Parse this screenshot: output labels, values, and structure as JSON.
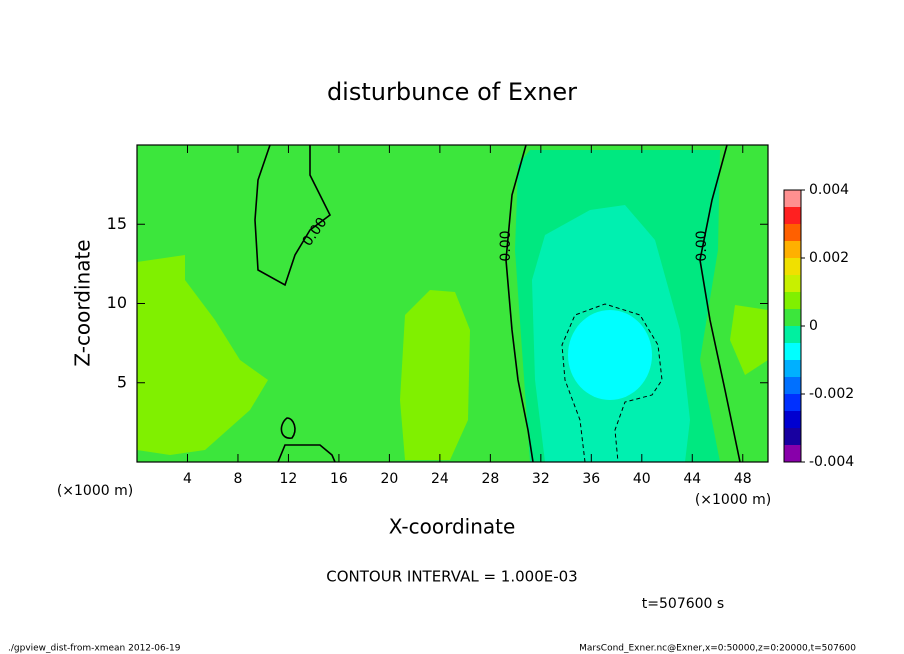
{
  "chart_data": {
    "type": "contour",
    "title": "disturbunce of Exner",
    "x_label": "X-coordinate",
    "y_label": "Z-coordinate",
    "x_unit_label": "(×1000 m)",
    "xlim": [
      0,
      50
    ],
    "xticks": [
      4,
      8,
      12,
      16,
      20,
      24,
      28,
      32,
      36,
      40,
      44,
      48
    ],
    "ylim": [
      0,
      20
    ],
    "yticks": [
      5,
      10,
      15
    ],
    "contour_line_label": "0.00",
    "contour_interval": "CONTOUR INTERVAL = 1.000E-03",
    "time_label": "t=507600 s",
    "colorbar": {
      "levels": [
        -0.004,
        -0.0035,
        -0.003,
        -0.0025,
        -0.002,
        -0.0015,
        -0.001,
        -0.0005,
        0,
        0.0005,
        0.001,
        0.0015,
        0.002,
        0.0025,
        0.003,
        0.0035,
        0.004
      ],
      "colors": [
        "#8800aa",
        "#1800a0",
        "#0000d0",
        "#0030ff",
        "#0070ff",
        "#00b0ff",
        "#00ffff",
        "#00f0a0",
        "#3ce63c",
        "#80f000",
        "#c8f000",
        "#f0e000",
        "#ffb000",
        "#ff6000",
        "#ff2020",
        "#ff9090"
      ],
      "ticks": [
        -0.004,
        -0.002,
        0,
        0.002,
        0.004
      ]
    },
    "footer_left": "./gpview_dist-from-xmean  2012-06-19",
    "footer_right": "MarsCond_Exner.nc@Exner,x=0:50000,z=0:20000,t=507600"
  }
}
